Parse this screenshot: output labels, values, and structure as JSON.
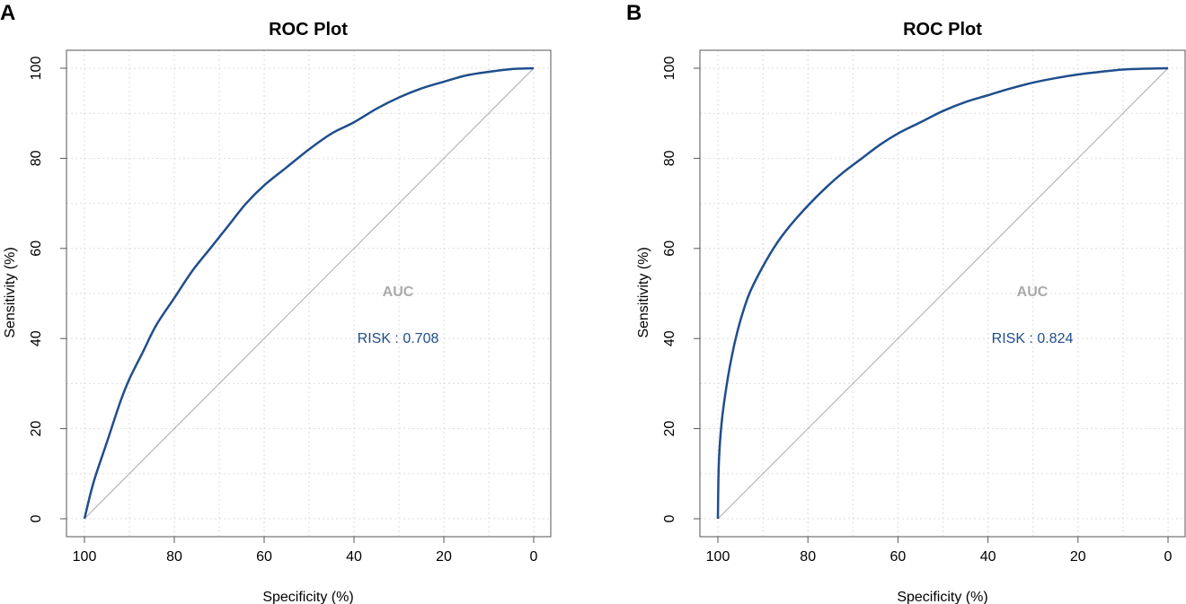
{
  "chart_data": [
    {
      "type": "line",
      "panel_label": "A",
      "title": "ROC Plot",
      "xlabel": "Specificity (%)",
      "ylabel": "Sensitivity (%)",
      "xlim": [
        100,
        0
      ],
      "ylim": [
        0,
        100
      ],
      "x_ticks": [
        100,
        80,
        60,
        40,
        20,
        0
      ],
      "y_ticks": [
        0,
        20,
        40,
        60,
        80,
        100
      ],
      "grid": true,
      "diagonal_reference": true,
      "series": [
        {
          "name": "RISK",
          "color": "#1f4e8c",
          "specificity": [
            100,
            98,
            95,
            92,
            90,
            87,
            84,
            80,
            76,
            72,
            68,
            64,
            60,
            55,
            50,
            45,
            40,
            35,
            30,
            25,
            20,
            15,
            10,
            5,
            0
          ],
          "sensitivity": [
            0,
            8,
            17,
            26,
            31,
            37,
            43,
            49,
            55,
            60,
            65,
            70,
            74,
            78,
            82,
            85.5,
            88,
            91,
            93.5,
            95.5,
            97,
            98.4,
            99.2,
            99.8,
            100
          ]
        }
      ],
      "auc_heading": "AUC",
      "auc_text": "RISK : 0.708",
      "colors": {
        "curve": "#1f4e8c",
        "auc_heading": "#aaaaaa",
        "diagonal": "#aaaaaa",
        "grid": "#dddddd"
      }
    },
    {
      "type": "line",
      "panel_label": "B",
      "title": "ROC Plot",
      "xlabel": "Specificity (%)",
      "ylabel": "Sensitivity (%)",
      "xlim": [
        100,
        0
      ],
      "ylim": [
        0,
        100
      ],
      "x_ticks": [
        100,
        80,
        60,
        40,
        20,
        0
      ],
      "y_ticks": [
        0,
        20,
        40,
        60,
        80,
        100
      ],
      "grid": true,
      "diagonal_reference": true,
      "series": [
        {
          "name": "RISK",
          "color": "#1f4e8c",
          "specificity": [
            100,
            99.8,
            99.2,
            98,
            96.5,
            95,
            93,
            90,
            87,
            84,
            80,
            76,
            72,
            68,
            64,
            60,
            55,
            50,
            45,
            40,
            35,
            30,
            25,
            20,
            15,
            10,
            5,
            0
          ],
          "sensitivity": [
            0,
            12,
            21,
            30,
            38,
            44,
            50,
            56,
            61,
            65,
            69.5,
            73.5,
            77,
            80,
            83,
            85.5,
            88,
            90.5,
            92.5,
            94,
            95.5,
            96.8,
            97.8,
            98.6,
            99.2,
            99.7,
            99.9,
            100
          ]
        }
      ],
      "auc_heading": "AUC",
      "auc_text": "RISK : 0.824",
      "colors": {
        "curve": "#1f4e8c",
        "auc_heading": "#aaaaaa",
        "diagonal": "#aaaaaa",
        "grid": "#dddddd"
      }
    }
  ]
}
